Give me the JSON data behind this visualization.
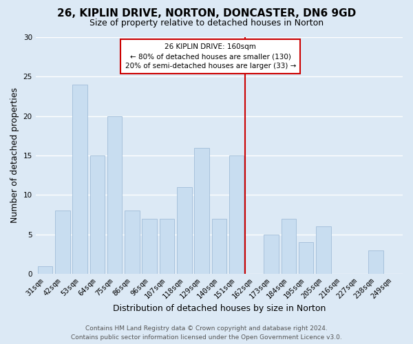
{
  "title": "26, KIPLIN DRIVE, NORTON, DONCASTER, DN6 9GD",
  "subtitle": "Size of property relative to detached houses in Norton",
  "xlabel": "Distribution of detached houses by size in Norton",
  "ylabel": "Number of detached properties",
  "categories": [
    "31sqm",
    "42sqm",
    "53sqm",
    "64sqm",
    "75sqm",
    "86sqm",
    "96sqm",
    "107sqm",
    "118sqm",
    "129sqm",
    "140sqm",
    "151sqm",
    "162sqm",
    "173sqm",
    "184sqm",
    "195sqm",
    "205sqm",
    "216sqm",
    "227sqm",
    "238sqm",
    "249sqm"
  ],
  "values": [
    1,
    8,
    24,
    15,
    20,
    8,
    7,
    7,
    11,
    16,
    7,
    15,
    0,
    5,
    7,
    4,
    6,
    0,
    0,
    3,
    0
  ],
  "bar_color": "#c8ddf0",
  "bar_edge_color": "#a0bcd8",
  "grid_color": "#ffffff",
  "bg_color": "#dce9f5",
  "vline_color": "#cc0000",
  "annotation_box_title": "26 KIPLIN DRIVE: 160sqm",
  "annotation_line1": "← 80% of detached houses are smaller (130)",
  "annotation_line2": "20% of semi-detached houses are larger (33) →",
  "annotation_box_edge_color": "#cc0000",
  "ylim": [
    0,
    30
  ],
  "yticks": [
    0,
    5,
    10,
    15,
    20,
    25,
    30
  ],
  "footer1": "Contains HM Land Registry data © Crown copyright and database right 2024.",
  "footer2": "Contains public sector information licensed under the Open Government Licence v3.0.",
  "title_fontsize": 11,
  "subtitle_fontsize": 9,
  "xlabel_fontsize": 9,
  "ylabel_fontsize": 9,
  "tick_fontsize": 7.5,
  "annotation_fontsize": 7.5,
  "footer_fontsize": 6.5
}
